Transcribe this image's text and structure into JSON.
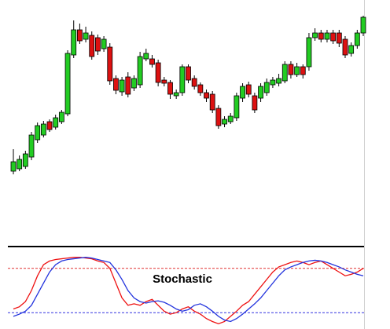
{
  "chart_data": [
    {
      "type": "candlestick",
      "up_color": "#22cc22",
      "down_color": "#dd1111",
      "ylim": [
        0,
        260
      ],
      "open": [
        42,
        45,
        48,
        60,
        82,
        88,
        105,
        98,
        105,
        115,
        190,
        222,
        210,
        215,
        212,
        198,
        200,
        160,
        143,
        162,
        148,
        152,
        185,
        185,
        180,
        158,
        155,
        138,
        142,
        175,
        160,
        152,
        142,
        140,
        122,
        102,
        105,
        110,
        135,
        152,
        138,
        135,
        142,
        152,
        154,
        157,
        178,
        165,
        175,
        175,
        212,
        218,
        210,
        218,
        218,
        210,
        192,
        202,
        218
      ],
      "high": [
        70,
        62,
        68,
        92,
        104,
        106,
        108,
        114,
        120,
        196,
        234,
        230,
        226,
        220,
        216,
        214,
        205,
        164,
        162,
        168,
        164,
        194,
        198,
        190,
        184,
        162,
        158,
        146,
        178,
        178,
        164,
        155,
        146,
        144,
        126,
        112,
        116,
        142,
        154,
        156,
        142,
        154,
        160,
        162,
        166,
        182,
        182,
        180,
        178,
        218,
        224,
        222,
        222,
        222,
        222,
        214,
        206,
        222,
        240
      ],
      "low": [
        38,
        42,
        45,
        56,
        78,
        85,
        92,
        95,
        102,
        112,
        186,
        204,
        206,
        184,
        190,
        194,
        152,
        140,
        138,
        136,
        144,
        148,
        182,
        174,
        150,
        150,
        134,
        134,
        138,
        154,
        146,
        138,
        130,
        116,
        96,
        98,
        102,
        106,
        130,
        136,
        116,
        130,
        138,
        148,
        150,
        154,
        160,
        162,
        160,
        170,
        208,
        206,
        206,
        204,
        200,
        186,
        188,
        198,
        214
      ],
      "close": [
        54,
        57,
        64,
        88,
        100,
        102,
        95,
        110,
        117,
        192,
        222,
        208,
        218,
        188,
        195,
        210,
        157,
        145,
        158,
        140,
        160,
        188,
        192,
        178,
        155,
        154,
        140,
        142,
        175,
        158,
        150,
        142,
        135,
        120,
        100,
        108,
        112,
        138,
        150,
        140,
        120,
        150,
        155,
        158,
        160,
        178,
        165,
        175,
        165,
        212,
        218,
        210,
        218,
        208,
        205,
        190,
        202,
        218,
        238
      ]
    },
    {
      "type": "line",
      "title": "Stochastic",
      "ylim": [
        0,
        100
      ],
      "hlines": [
        {
          "value": 80,
          "color": "#e03030"
        },
        {
          "value": 20,
          "color": "#3030e0"
        }
      ],
      "series": [
        {
          "color": "#ee1111",
          "values": [
            25,
            28,
            35,
            50,
            70,
            85,
            90,
            92,
            93,
            94,
            95,
            95,
            94,
            93,
            90,
            88,
            80,
            60,
            40,
            30,
            32,
            30,
            35,
            38,
            30,
            22,
            18,
            20,
            25,
            28,
            22,
            18,
            12,
            8,
            5,
            8,
            15,
            22,
            30,
            35,
            45,
            55,
            65,
            75,
            82,
            85,
            88,
            90,
            88,
            85,
            88,
            90,
            85,
            80,
            75,
            70,
            72,
            75,
            80
          ]
        },
        {
          "color": "#2233dd",
          "values": [
            15,
            18,
            22,
            30,
            45,
            60,
            75,
            85,
            90,
            92,
            93,
            94,
            95,
            94,
            92,
            90,
            88,
            78,
            65,
            50,
            40,
            35,
            33,
            35,
            36,
            34,
            30,
            25,
            22,
            24,
            30,
            32,
            28,
            22,
            15,
            10,
            8,
            12,
            18,
            25,
            32,
            40,
            50,
            60,
            70,
            78,
            82,
            85,
            88,
            90,
            91,
            90,
            88,
            85,
            82,
            78,
            75,
            72,
            70
          ]
        }
      ]
    }
  ]
}
